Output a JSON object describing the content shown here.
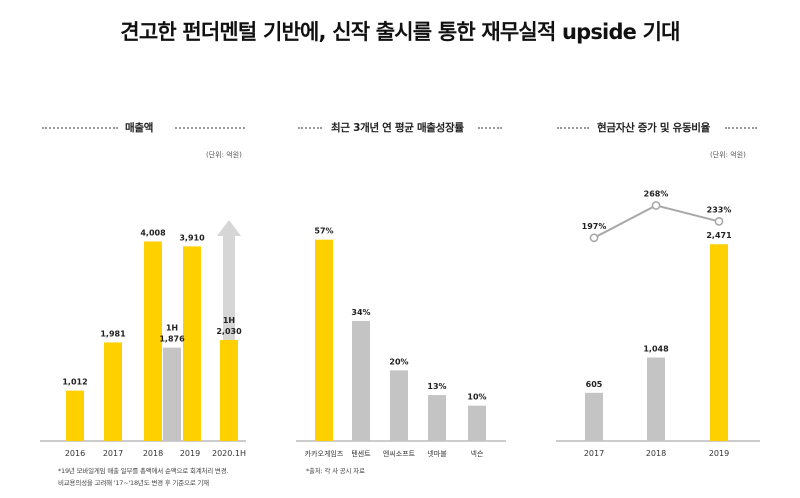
{
  "title": "견고한 펀더멘털 기반에, 신작 출시를 통한 재무실적 upside 기대",
  "colors": {
    "highlight": "#FFD000",
    "neutral": "#C4C4C4",
    "axis": "#9a9a9a",
    "arrow": "#d6d6d6",
    "line": "#a8a8a8"
  },
  "chart_data": [
    {
      "type": "bar",
      "title": "매출액",
      "unit_note": "(단위: 억원)",
      "categories": [
        "2016",
        "2017",
        "2018",
        "2019",
        "2020.1H"
      ],
      "values": [
        1012,
        1981,
        4008,
        3910,
        2030
      ],
      "value_labels": [
        "1,012",
        "1,981",
        "4,008",
        "3,910",
        "2,030"
      ],
      "extra_bar": {
        "category": "2019",
        "period_tag": "1H",
        "value": 1876,
        "value_label": "1,876"
      },
      "latest_period_tag": "1H",
      "ylim": [
        0,
        4400
      ],
      "growth_arrow": true,
      "footnotes": [
        "*19년 모바일게임 매출 일부를 총액에서 순액으로 회계처리 변경.",
        "비교용의성을 고려해 '17~'18년도 변경 후 기준으로 기재"
      ]
    },
    {
      "type": "bar",
      "title": "최근 3개년 연 평균 매출성장률",
      "categories": [
        "카카오게임즈",
        "텐센트",
        "엔씨소프트",
        "넷마블",
        "넥슨"
      ],
      "values": [
        57,
        34,
        20,
        13,
        10
      ],
      "value_labels": [
        "57%",
        "34%",
        "20%",
        "13%",
        "10%"
      ],
      "ylim": [
        0,
        62
      ],
      "footnotes": [
        "*출처: 각 사 공시 자료"
      ]
    },
    {
      "type": "bar+line",
      "title": "현금자산 증가 및 유동비율",
      "unit_note": "(단위: 억원)",
      "categories": [
        "2017",
        "2018",
        "2019"
      ],
      "bar_values": [
        605,
        1048,
        2471
      ],
      "bar_labels": [
        "605",
        "1,048",
        "2,471"
      ],
      "line_values": [
        197,
        268,
        233
      ],
      "line_labels": [
        "197%",
        "268%",
        "233%"
      ],
      "ylim": [
        0,
        2750
      ],
      "line_ylim": [
        100,
        280
      ]
    }
  ]
}
